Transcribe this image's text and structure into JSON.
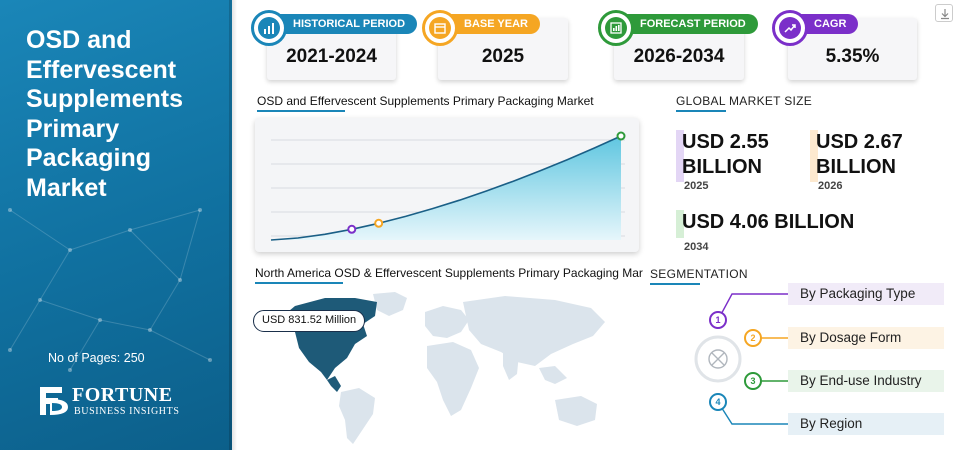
{
  "left_panel": {
    "title_lines": [
      "OSD and",
      "Effervescent",
      "Supplements",
      "Primary",
      "Packaging",
      "Market"
    ],
    "pages_text": "No of Pages: 250",
    "logo": {
      "word1": "FORTUNE",
      "word2": "BUSINESS INSIGHTS"
    }
  },
  "periods": [
    {
      "label": "HISTORICAL PERIOD",
      "value": "2021-2024",
      "color": "#1a86b8",
      "icon": "bar-chart-icon"
    },
    {
      "label": "BASE YEAR",
      "value": "2025",
      "color": "#f5a623",
      "icon": "calendar-icon"
    },
    {
      "label": "FORECAST PERIOD",
      "value": "2026-2034",
      "color": "#2e9a3a",
      "icon": "forecast-chart-icon"
    },
    {
      "label": "CAGR",
      "value": "5.35%",
      "color": "#7b2fc9",
      "icon": "growth-icon"
    }
  ],
  "chart": {
    "title": "OSD and Effervescent Supplements Primary Packaging Market"
  },
  "chart_data": {
    "type": "area",
    "title": "OSD and Effervescent Supplements Primary Packaging Market",
    "xlabel": "",
    "ylabel": "",
    "grid": true,
    "note_markers": [
      {
        "x_index": 3,
        "color": "#7b2fc9"
      },
      {
        "x_index": 4,
        "color": "#f5a623"
      },
      {
        "x_index": 13,
        "color": "#2e9a3a"
      }
    ]
  },
  "global_market_size": {
    "title": "GLOBAL MARKET SIZE",
    "stats": [
      {
        "line1": "USD 2.55",
        "line2": "BILLION",
        "year": "2025",
        "color": "#e3d6f5"
      },
      {
        "line1": "USD 2.67",
        "line2": "BILLION",
        "year": "2026",
        "color": "#fde9cf"
      },
      {
        "line1": "USD 4.06 BILLION",
        "line2": "",
        "year": "2034",
        "color": "#d6efd6"
      }
    ]
  },
  "map": {
    "title": "North America OSD & Effervescent Supplements Primary Packaging Mar",
    "badge": "USD 831.52 Million",
    "highlight_color": "#1e5a78",
    "base_color": "#dbe4ec"
  },
  "segmentation": {
    "title": "SEGMENTATION",
    "items": [
      {
        "num": "1",
        "label": "By Packaging Type",
        "color": "#7b2fc9",
        "bg": "#f1ebf8"
      },
      {
        "num": "2",
        "label": "By Dosage Form",
        "color": "#f5a623",
        "bg": "#fdf3e4"
      },
      {
        "num": "3",
        "label": "By End-use Industry",
        "color": "#2e9a3a",
        "bg": "#e9f4ea"
      },
      {
        "num": "4",
        "label": "By Region",
        "color": "#1a86b8",
        "bg": "#e6f0f6"
      }
    ]
  }
}
